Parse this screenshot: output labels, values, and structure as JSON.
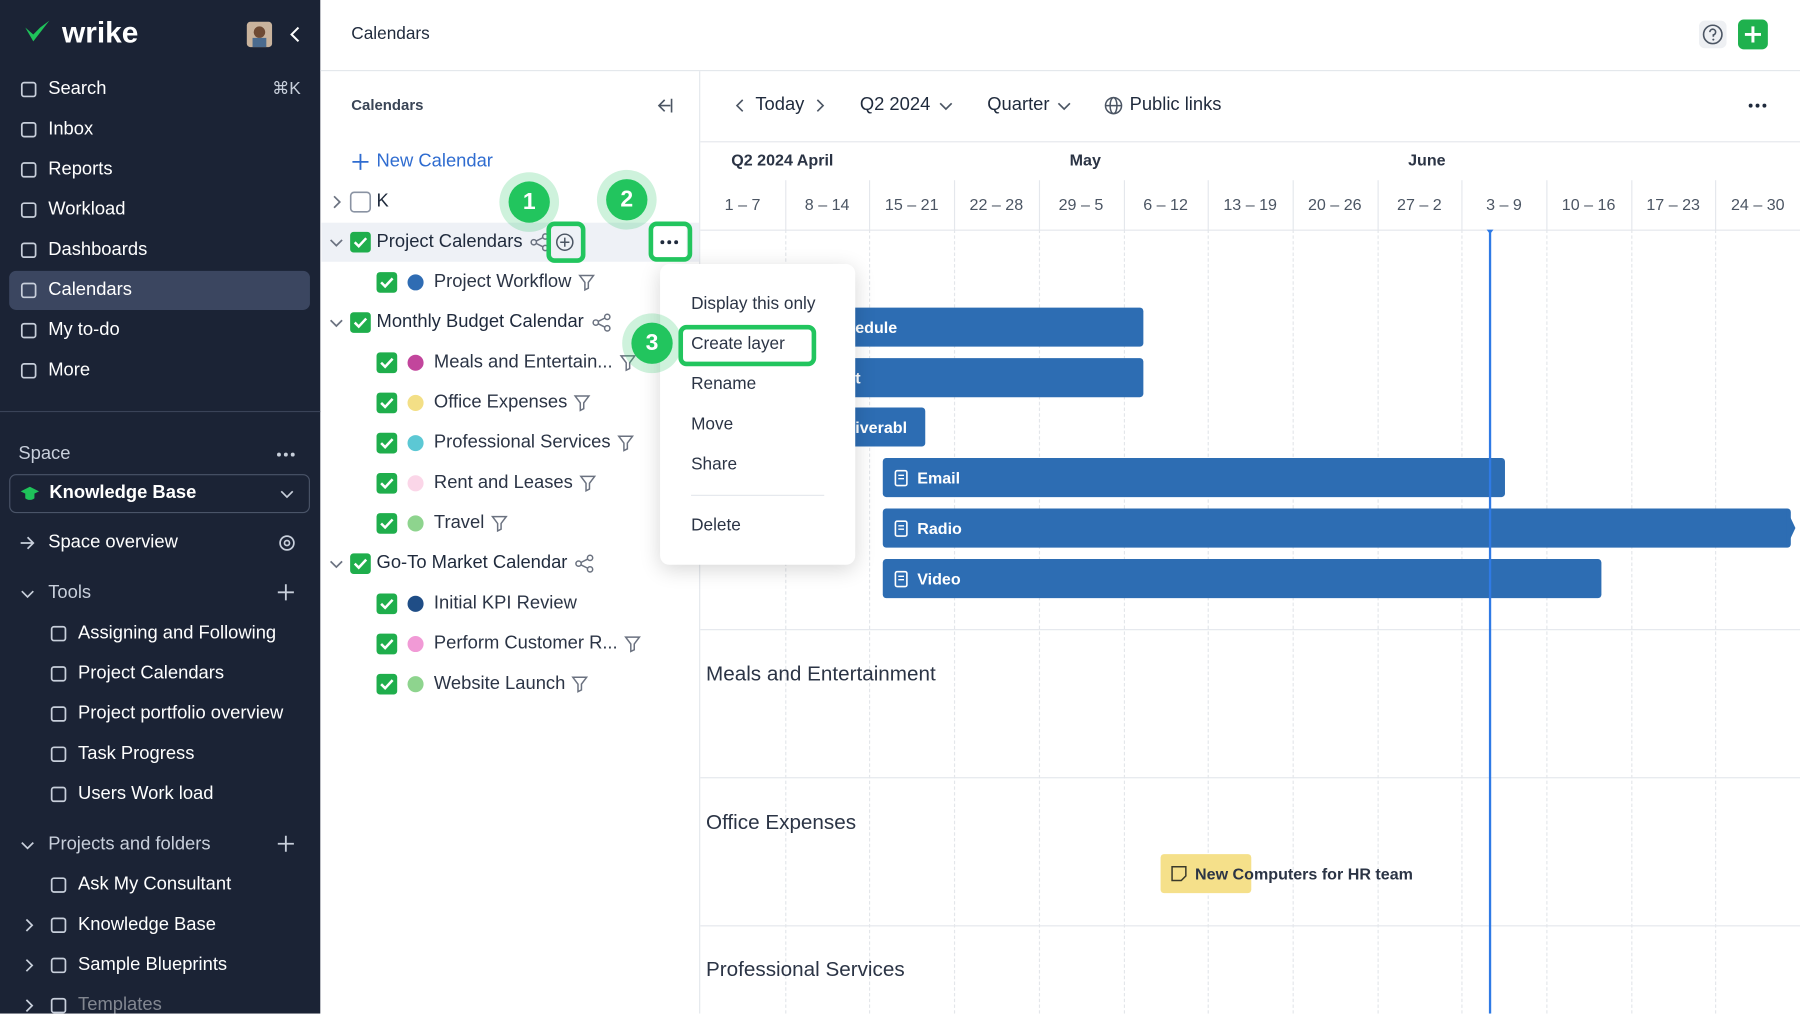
{
  "sidebar": {
    "logo": "wrike",
    "nav": [
      {
        "label": "Search",
        "shortcut": "⌘K"
      },
      {
        "label": "Inbox"
      },
      {
        "label": "Reports"
      },
      {
        "label": "Workload"
      },
      {
        "label": "Dashboards"
      },
      {
        "label": "Calendars",
        "active": true
      },
      {
        "label": "My to-do"
      },
      {
        "label": "More"
      }
    ],
    "space_label": "Space",
    "space_name": "Knowledge Base",
    "space_overview": "Space overview",
    "tools_label": "Tools",
    "tools": [
      "Assigning and Following",
      "Project Calendars",
      "Project portfolio overview",
      "Task Progress",
      "Users Work load"
    ],
    "projects_label": "Projects and folders",
    "projects": [
      "Ask My Consultant",
      "Knowledge Base",
      "Sample Blueprints",
      "Templates"
    ]
  },
  "header": {
    "title": "Calendars"
  },
  "calendars_panel": {
    "title": "Calendars",
    "new_calendar": "New Calendar",
    "calendars": [
      {
        "name": "K",
        "checked": false,
        "expanded": false,
        "share": false,
        "layers": []
      },
      {
        "name": "Project Calendars",
        "checked": true,
        "expanded": true,
        "share": true,
        "selected": true,
        "layers": [
          {
            "name": "Project Workflow",
            "color": "#2f6cb3",
            "filter": true
          }
        ]
      },
      {
        "name": "Monthly Budget Calendar",
        "checked": true,
        "expanded": true,
        "share": true,
        "layers": [
          {
            "name": "Meals and Entertain...",
            "color": "#c2459c",
            "filter": true
          },
          {
            "name": "Office Expenses",
            "color": "#f3df86",
            "filter": true
          },
          {
            "name": "Professional Services",
            "color": "#5cc8d4",
            "filter": true
          },
          {
            "name": "Rent and Leases",
            "color": "#fbd6e8",
            "filter": true
          },
          {
            "name": "Travel",
            "color": "#8ed48e",
            "filter": true
          }
        ]
      },
      {
        "name": "Go-To Market Calendar",
        "checked": true,
        "expanded": true,
        "share": true,
        "layers": [
          {
            "name": "Initial KPI Review",
            "color": "#1f4d86",
            "filter": false
          },
          {
            "name": "Perform Customer R...",
            "color": "#f19ad6",
            "filter": true
          },
          {
            "name": "Website Launch",
            "color": "#8ed48e",
            "filter": true
          }
        ]
      }
    ]
  },
  "toolbar": {
    "today": "Today",
    "period": "Q2 2024",
    "view": "Quarter",
    "public_links": "Public links"
  },
  "timeline": {
    "months": [
      "Q2 2024 April",
      "May",
      "June"
    ],
    "weeks": [
      "1 – 7",
      "8 – 14",
      "15 – 21",
      "22 – 28",
      "29 – 5",
      "6 – 12",
      "13 – 19",
      "20 – 26",
      "27 – 2",
      "3 – 9",
      "10 – 16",
      "17 – 23",
      "24 – 30"
    ],
    "bars": [
      "edule",
      "t",
      "iverabl",
      "Email",
      "Radio",
      "Video"
    ],
    "sections": [
      "Meals and Entertainment",
      "Office Expenses",
      "Professional Services"
    ],
    "task": "New Computers for HR team"
  },
  "context_menu": {
    "items": [
      "Display this only",
      "Create layer",
      "Rename",
      "Move",
      "Share",
      "Delete"
    ]
  },
  "steps": [
    "1",
    "2",
    "3"
  ]
}
